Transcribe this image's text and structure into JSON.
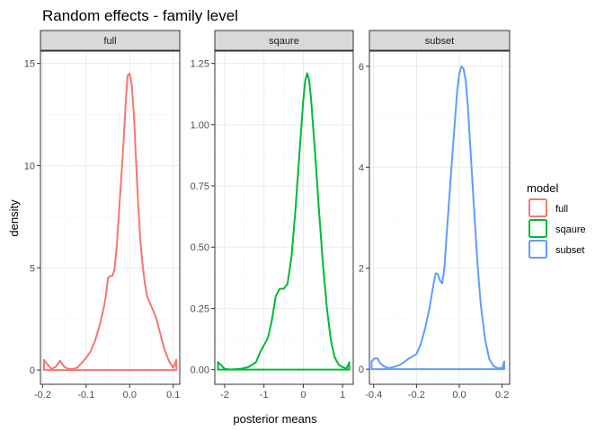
{
  "chart_data": {
    "type": "line",
    "title": "Random effects - family level",
    "xlabel": "posterior means",
    "ylabel": "density",
    "grid": true,
    "legend": {
      "title": "model",
      "placement": "right",
      "entries": [
        {
          "name": "full",
          "color": "#F8766D"
        },
        {
          "name": "sqaure",
          "color": "#00BA38"
        },
        {
          "name": "subset",
          "color": "#619CFF"
        }
      ]
    },
    "facets": [
      {
        "strip": "full",
        "color": "#F8766D",
        "xlim": [
          -0.205,
          0.115
        ],
        "ylim": [
          -0.7,
          15.6
        ],
        "xticks": [
          -0.2,
          -0.1,
          0.0,
          0.1
        ],
        "xtick_labels": [
          "-0.2",
          "-0.1",
          "0.0",
          "0.1"
        ],
        "yticks": [
          0,
          5,
          10,
          15
        ],
        "ytick_labels": [
          "0",
          "5",
          "10",
          "15"
        ],
        "x": [
          -0.197,
          -0.19,
          -0.18,
          -0.17,
          -0.16,
          -0.15,
          -0.14,
          -0.13,
          -0.12,
          -0.11,
          -0.1,
          -0.09,
          -0.08,
          -0.07,
          -0.06,
          -0.055,
          -0.05,
          -0.045,
          -0.04,
          -0.035,
          -0.03,
          -0.025,
          -0.02,
          -0.015,
          -0.01,
          -0.005,
          0.0,
          0.005,
          0.01,
          0.015,
          0.02,
          0.025,
          0.03,
          0.035,
          0.04,
          0.05,
          0.06,
          0.07,
          0.08,
          0.09,
          0.1,
          0.107
        ],
        "y": [
          0.5,
          0.3,
          0.05,
          0.15,
          0.45,
          0.15,
          0.05,
          0.05,
          0.12,
          0.35,
          0.6,
          0.9,
          1.4,
          2.1,
          3.0,
          3.6,
          4.5,
          4.6,
          4.6,
          4.9,
          6.0,
          7.6,
          9.2,
          10.8,
          12.8,
          14.4,
          14.5,
          13.9,
          12.4,
          10.0,
          7.9,
          6.2,
          5.1,
          4.2,
          3.6,
          3.1,
          2.6,
          1.8,
          1.0,
          0.45,
          0.1,
          0.5
        ]
      },
      {
        "strip": "sqaure",
        "color": "#00BA38",
        "xlim": [
          -2.25,
          1.27
        ],
        "ylim": [
          -0.06,
          1.3
        ],
        "xticks": [
          -2,
          -1,
          0,
          1
        ],
        "xtick_labels": [
          "-2",
          "-1",
          "0",
          "1"
        ],
        "yticks": [
          0.0,
          0.25,
          0.5,
          0.75,
          1.0,
          1.25
        ],
        "ytick_labels": [
          "0.00",
          "0.25",
          "0.50",
          "0.75",
          "1.00",
          "1.25"
        ],
        "x": [
          -2.17,
          -2.1,
          -2.0,
          -1.9,
          -1.8,
          -1.6,
          -1.4,
          -1.2,
          -1.1,
          -1.0,
          -0.9,
          -0.8,
          -0.75,
          -0.7,
          -0.6,
          -0.5,
          -0.4,
          -0.3,
          -0.2,
          -0.1,
          0.0,
          0.05,
          0.1,
          0.15,
          0.2,
          0.3,
          0.4,
          0.5,
          0.6,
          0.7,
          0.8,
          0.9,
          1.0,
          1.1,
          1.17
        ],
        "y": [
          0.03,
          0.02,
          0.003,
          0.001,
          0.001,
          0.003,
          0.01,
          0.03,
          0.07,
          0.1,
          0.13,
          0.2,
          0.25,
          0.3,
          0.33,
          0.33,
          0.35,
          0.46,
          0.65,
          0.88,
          1.1,
          1.18,
          1.21,
          1.18,
          1.1,
          0.88,
          0.65,
          0.43,
          0.25,
          0.12,
          0.05,
          0.02,
          0.01,
          0.005,
          0.03
        ]
      },
      {
        "strip": "subset",
        "color": "#619CFF",
        "xlim": [
          -0.42,
          0.235
        ],
        "ylim": [
          -0.3,
          6.3
        ],
        "xticks": [
          -0.4,
          -0.2,
          0.0,
          0.2
        ],
        "xtick_labels": [
          "-0.4",
          "-0.2",
          "0.0",
          "0.2"
        ],
        "yticks": [
          0,
          2,
          4,
          6
        ],
        "ytick_labels": [
          "0",
          "2",
          "4",
          "6"
        ],
        "x": [
          -0.41,
          -0.4,
          -0.39,
          -0.38,
          -0.37,
          -0.35,
          -0.33,
          -0.3,
          -0.27,
          -0.24,
          -0.22,
          -0.2,
          -0.18,
          -0.16,
          -0.14,
          -0.12,
          -0.11,
          -0.1,
          -0.09,
          -0.08,
          -0.07,
          -0.06,
          -0.05,
          -0.04,
          -0.03,
          -0.02,
          -0.01,
          0.0,
          0.01,
          0.02,
          0.03,
          0.04,
          0.05,
          0.06,
          0.07,
          0.08,
          0.09,
          0.1,
          0.12,
          0.14,
          0.16,
          0.18,
          0.2,
          0.21
        ],
        "y": [
          0.15,
          0.2,
          0.22,
          0.2,
          0.12,
          0.05,
          0.02,
          0.05,
          0.1,
          0.2,
          0.25,
          0.3,
          0.5,
          0.8,
          1.2,
          1.7,
          1.9,
          1.88,
          1.75,
          1.7,
          2.0,
          2.6,
          3.2,
          3.8,
          4.4,
          4.95,
          5.5,
          5.85,
          6.0,
          5.95,
          5.7,
          5.2,
          4.5,
          3.8,
          3.1,
          2.4,
          1.8,
          1.3,
          0.6,
          0.2,
          0.06,
          0.02,
          0.02,
          0.15
        ]
      }
    ]
  }
}
